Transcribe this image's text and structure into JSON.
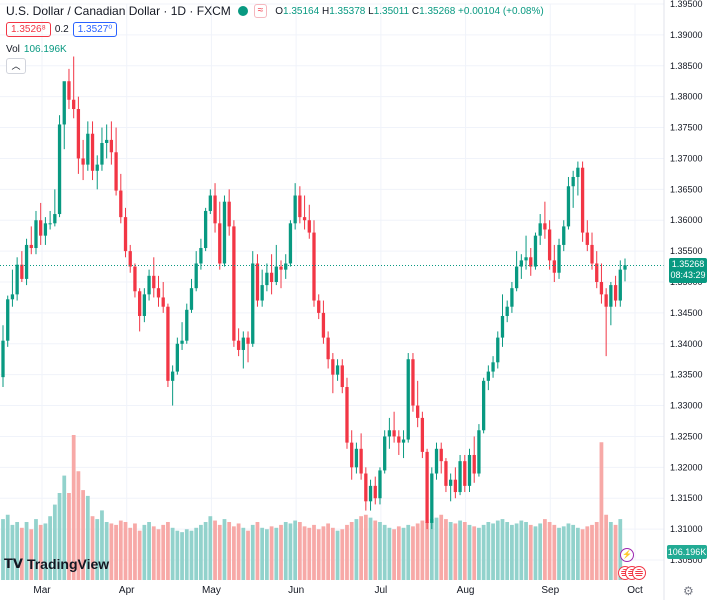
{
  "legend": {
    "title": "U.S. Dollar / Canadian Dollar · 1D · FXCM",
    "badge": "≈",
    "open_label": "O",
    "open": "1.35164",
    "high_label": "H",
    "high": "1.35378",
    "low_label": "L",
    "low": "1.35011",
    "close_label": "C",
    "close": "1.35268",
    "change": "+0.00104 (+0.08%)",
    "bid": "1.3526⁸",
    "spread": "0.2",
    "ask": "1.3527⁰"
  },
  "volume": {
    "label": "Vol",
    "value": "106.196K"
  },
  "collapse_icon": "chevron-up",
  "price_tag": {
    "price": "1.35268",
    "countdown": "08:43:29"
  },
  "vol_tag": "106.196K",
  "branding": "TradingView",
  "colors": {
    "up": "#089981",
    "down": "#f23645",
    "vol_up": "#92d2cc",
    "vol_down": "#f7a9a7",
    "last_line": "#089981"
  },
  "chart_data": {
    "type": "candlestick",
    "y_ticks": [
      "1.39500",
      "1.39000",
      "1.38500",
      "1.38000",
      "1.37500",
      "1.37000",
      "1.36500",
      "1.36000",
      "1.35500",
      "1.35000",
      "1.34500",
      "1.34000",
      "1.33500",
      "1.33000",
      "1.32500",
      "1.32000",
      "1.31500",
      "1.31000",
      "1.30500"
    ],
    "x_ticks": [
      "Mar",
      "Apr",
      "May",
      "Jun",
      "Jul",
      "Aug",
      "Sep",
      "Oct"
    ],
    "ylim": [
      1.305,
      1.395
    ],
    "last_price": 1.35268,
    "candles": [
      [
        1.3346,
        1.343,
        1.333,
        1.3405
      ],
      [
        1.3405,
        1.3478,
        1.3395,
        1.3472
      ],
      [
        1.3472,
        1.352,
        1.346,
        1.348
      ],
      [
        1.348,
        1.354,
        1.347,
        1.3528
      ],
      [
        1.3528,
        1.355,
        1.35,
        1.3505
      ],
      [
        1.3505,
        1.357,
        1.3495,
        1.356
      ],
      [
        1.356,
        1.359,
        1.3545,
        1.3555
      ],
      [
        1.3555,
        1.3615,
        1.3545,
        1.36
      ],
      [
        1.36,
        1.3628,
        1.356,
        1.3575
      ],
      [
        1.3575,
        1.3605,
        1.356,
        1.3595
      ],
      [
        1.3595,
        1.3615,
        1.3585,
        1.3595
      ],
      [
        1.3595,
        1.365,
        1.359,
        1.361
      ],
      [
        1.361,
        1.377,
        1.3605,
        1.3755
      ],
      [
        1.3755,
        1.382,
        1.3715,
        1.3825
      ],
      [
        1.3825,
        1.3845,
        1.378,
        1.3795
      ],
      [
        1.3795,
        1.3865,
        1.3765,
        1.378
      ],
      [
        1.378,
        1.38,
        1.3675,
        1.37
      ],
      [
        1.37,
        1.373,
        1.3665,
        1.369
      ],
      [
        1.369,
        1.376,
        1.368,
        1.374
      ],
      [
        1.374,
        1.376,
        1.3665,
        1.368
      ],
      [
        1.368,
        1.3705,
        1.365,
        1.369
      ],
      [
        1.369,
        1.375,
        1.368,
        1.3725
      ],
      [
        1.3725,
        1.3755,
        1.37,
        1.373
      ],
      [
        1.373,
        1.376,
        1.369,
        1.371
      ],
      [
        1.371,
        1.375,
        1.364,
        1.3648
      ],
      [
        1.3648,
        1.3675,
        1.3595,
        1.3605
      ],
      [
        1.3605,
        1.362,
        1.354,
        1.355
      ],
      [
        1.355,
        1.356,
        1.3515,
        1.3525
      ],
      [
        1.3525,
        1.353,
        1.3475,
        1.3485
      ],
      [
        1.3485,
        1.349,
        1.342,
        1.3445
      ],
      [
        1.3445,
        1.349,
        1.3435,
        1.348
      ],
      [
        1.348,
        1.352,
        1.347,
        1.351
      ],
      [
        1.351,
        1.354,
        1.3475,
        1.349
      ],
      [
        1.349,
        1.351,
        1.346,
        1.3475
      ],
      [
        1.3475,
        1.35,
        1.345,
        1.346
      ],
      [
        1.346,
        1.3465,
        1.333,
        1.334
      ],
      [
        1.334,
        1.3365,
        1.33,
        1.3355
      ],
      [
        1.3355,
        1.341,
        1.335,
        1.34
      ],
      [
        1.34,
        1.3435,
        1.339,
        1.3405
      ],
      [
        1.3405,
        1.3465,
        1.34,
        1.3455
      ],
      [
        1.3455,
        1.3505,
        1.345,
        1.349
      ],
      [
        1.349,
        1.355,
        1.3485,
        1.353
      ],
      [
        1.353,
        1.357,
        1.352,
        1.3555
      ],
      [
        1.3555,
        1.362,
        1.355,
        1.3615
      ],
      [
        1.3615,
        1.365,
        1.361,
        1.364
      ],
      [
        1.364,
        1.366,
        1.358,
        1.3595
      ],
      [
        1.3595,
        1.363,
        1.352,
        1.353
      ],
      [
        1.353,
        1.364,
        1.3525,
        1.363
      ],
      [
        1.363,
        1.365,
        1.3575,
        1.359
      ],
      [
        1.359,
        1.36,
        1.3395,
        1.3405
      ],
      [
        1.3405,
        1.3425,
        1.338,
        1.339
      ],
      [
        1.339,
        1.342,
        1.336,
        1.341
      ],
      [
        1.341,
        1.342,
        1.337,
        1.34
      ],
      [
        1.34,
        1.355,
        1.3395,
        1.353
      ],
      [
        1.353,
        1.3545,
        1.346,
        1.347
      ],
      [
        1.347,
        1.352,
        1.346,
        1.3495
      ],
      [
        1.3495,
        1.353,
        1.3485,
        1.3515
      ],
      [
        1.3515,
        1.3545,
        1.348,
        1.35
      ],
      [
        1.35,
        1.356,
        1.3495,
        1.3525
      ],
      [
        1.3525,
        1.3535,
        1.349,
        1.352
      ],
      [
        1.352,
        1.3545,
        1.3505,
        1.353
      ],
      [
        1.353,
        1.36,
        1.3525,
        1.3595
      ],
      [
        1.3595,
        1.366,
        1.3585,
        1.364
      ],
      [
        1.364,
        1.3655,
        1.3595,
        1.3605
      ],
      [
        1.3605,
        1.364,
        1.3585,
        1.36
      ],
      [
        1.36,
        1.3625,
        1.357,
        1.358
      ],
      [
        1.358,
        1.36,
        1.346,
        1.347
      ],
      [
        1.347,
        1.348,
        1.344,
        1.345
      ],
      [
        1.345,
        1.347,
        1.34,
        1.341
      ],
      [
        1.341,
        1.342,
        1.336,
        1.3375
      ],
      [
        1.3375,
        1.3385,
        1.332,
        1.335
      ],
      [
        1.335,
        1.3375,
        1.334,
        1.3365
      ],
      [
        1.3365,
        1.3375,
        1.332,
        1.333
      ],
      [
        1.333,
        1.3345,
        1.323,
        1.324
      ],
      [
        1.324,
        1.326,
        1.318,
        1.32
      ],
      [
        1.32,
        1.324,
        1.319,
        1.323
      ],
      [
        1.323,
        1.3255,
        1.318,
        1.319
      ],
      [
        1.319,
        1.32,
        1.313,
        1.3145
      ],
      [
        1.3145,
        1.318,
        1.313,
        1.317
      ],
      [
        1.317,
        1.3185,
        1.314,
        1.315
      ],
      [
        1.315,
        1.32,
        1.314,
        1.3195
      ],
      [
        1.3195,
        1.326,
        1.319,
        1.325
      ],
      [
        1.325,
        1.328,
        1.323,
        1.326
      ],
      [
        1.326,
        1.329,
        1.324,
        1.325
      ],
      [
        1.325,
        1.326,
        1.322,
        1.324
      ],
      [
        1.324,
        1.326,
        1.3215,
        1.3245
      ],
      [
        1.3245,
        1.3385,
        1.324,
        1.3375
      ],
      [
        1.3375,
        1.3385,
        1.329,
        1.33
      ],
      [
        1.33,
        1.334,
        1.3265,
        1.328
      ],
      [
        1.328,
        1.329,
        1.3215,
        1.3225
      ],
      [
        1.3225,
        1.323,
        1.31,
        1.311
      ],
      [
        1.311,
        1.32,
        1.31,
        1.319
      ],
      [
        1.319,
        1.324,
        1.318,
        1.323
      ],
      [
        1.323,
        1.324,
        1.319,
        1.321
      ],
      [
        1.321,
        1.3215,
        1.316,
        1.317
      ],
      [
        1.317,
        1.319,
        1.3145,
        1.318
      ],
      [
        1.318,
        1.32,
        1.315,
        1.316
      ],
      [
        1.316,
        1.322,
        1.3155,
        1.321
      ],
      [
        1.321,
        1.322,
        1.316,
        1.317
      ],
      [
        1.317,
        1.323,
        1.316,
        1.322
      ],
      [
        1.322,
        1.325,
        1.3175,
        1.319
      ],
      [
        1.319,
        1.327,
        1.3185,
        1.326
      ],
      [
        1.326,
        1.3345,
        1.3255,
        1.334
      ],
      [
        1.334,
        1.3365,
        1.3325,
        1.3355
      ],
      [
        1.3355,
        1.338,
        1.3345,
        1.337
      ],
      [
        1.337,
        1.342,
        1.336,
        1.341
      ],
      [
        1.341,
        1.348,
        1.3395,
        1.3445
      ],
      [
        1.3445,
        1.347,
        1.3435,
        1.346
      ],
      [
        1.346,
        1.35,
        1.345,
        1.349
      ],
      [
        1.349,
        1.355,
        1.3485,
        1.3525
      ],
      [
        1.3525,
        1.3545,
        1.3505,
        1.3535
      ],
      [
        1.3535,
        1.3575,
        1.352,
        1.354
      ],
      [
        1.354,
        1.3555,
        1.351,
        1.3525
      ],
      [
        1.3525,
        1.358,
        1.352,
        1.3575
      ],
      [
        1.3575,
        1.361,
        1.356,
        1.3595
      ],
      [
        1.3595,
        1.363,
        1.357,
        1.3585
      ],
      [
        1.3585,
        1.36,
        1.352,
        1.3535
      ],
      [
        1.3535,
        1.356,
        1.35,
        1.3515
      ],
      [
        1.3515,
        1.357,
        1.3505,
        1.356
      ],
      [
        1.356,
        1.36,
        1.355,
        1.359
      ],
      [
        1.359,
        1.367,
        1.3585,
        1.3655
      ],
      [
        1.3655,
        1.368,
        1.362,
        1.367
      ],
      [
        1.367,
        1.3695,
        1.364,
        1.3685
      ],
      [
        1.3685,
        1.3695,
        1.3565,
        1.358
      ],
      [
        1.358,
        1.36,
        1.355,
        1.356
      ],
      [
        1.356,
        1.358,
        1.352,
        1.353
      ],
      [
        1.353,
        1.355,
        1.349,
        1.35
      ],
      [
        1.35,
        1.353,
        1.3465,
        1.348
      ],
      [
        1.348,
        1.349,
        1.338,
        1.346
      ],
      [
        1.346,
        1.35,
        1.343,
        1.3495
      ],
      [
        1.3495,
        1.351,
        1.346,
        1.347
      ],
      [
        1.347,
        1.3535,
        1.346,
        1.352
      ],
      [
        1.352,
        1.3538,
        1.3501,
        1.3527
      ]
    ],
    "volumes": [
      0.42,
      0.45,
      0.38,
      0.4,
      0.36,
      0.4,
      0.35,
      0.42,
      0.38,
      0.39,
      0.44,
      0.52,
      0.6,
      0.72,
      0.6,
      1.0,
      0.75,
      0.62,
      0.58,
      0.44,
      0.42,
      0.48,
      0.4,
      0.39,
      0.38,
      0.41,
      0.4,
      0.36,
      0.39,
      0.34,
      0.38,
      0.4,
      0.37,
      0.35,
      0.38,
      0.4,
      0.36,
      0.34,
      0.33,
      0.35,
      0.34,
      0.36,
      0.38,
      0.4,
      0.44,
      0.41,
      0.38,
      0.42,
      0.4,
      0.37,
      0.39,
      0.36,
      0.34,
      0.38,
      0.4,
      0.36,
      0.35,
      0.37,
      0.36,
      0.38,
      0.4,
      0.39,
      0.41,
      0.4,
      0.37,
      0.36,
      0.38,
      0.35,
      0.37,
      0.39,
      0.36,
      0.34,
      0.35,
      0.38,
      0.4,
      0.42,
      0.44,
      0.45,
      0.43,
      0.41,
      0.4,
      0.38,
      0.36,
      0.35,
      0.37,
      0.36,
      0.38,
      0.37,
      0.39,
      0.41,
      0.4,
      0.42,
      0.43,
      0.45,
      0.42,
      0.4,
      0.39,
      0.41,
      0.4,
      0.38,
      0.37,
      0.36,
      0.38,
      0.4,
      0.39,
      0.41,
      0.42,
      0.4,
      0.38,
      0.39,
      0.41,
      0.4,
      0.38,
      0.37,
      0.39,
      0.42,
      0.4,
      0.38,
      0.36,
      0.37,
      0.39,
      0.38,
      0.36,
      0.35,
      0.37,
      0.38,
      0.4,
      0.95,
      0.45,
      0.4,
      0.38,
      0.42
    ]
  }
}
